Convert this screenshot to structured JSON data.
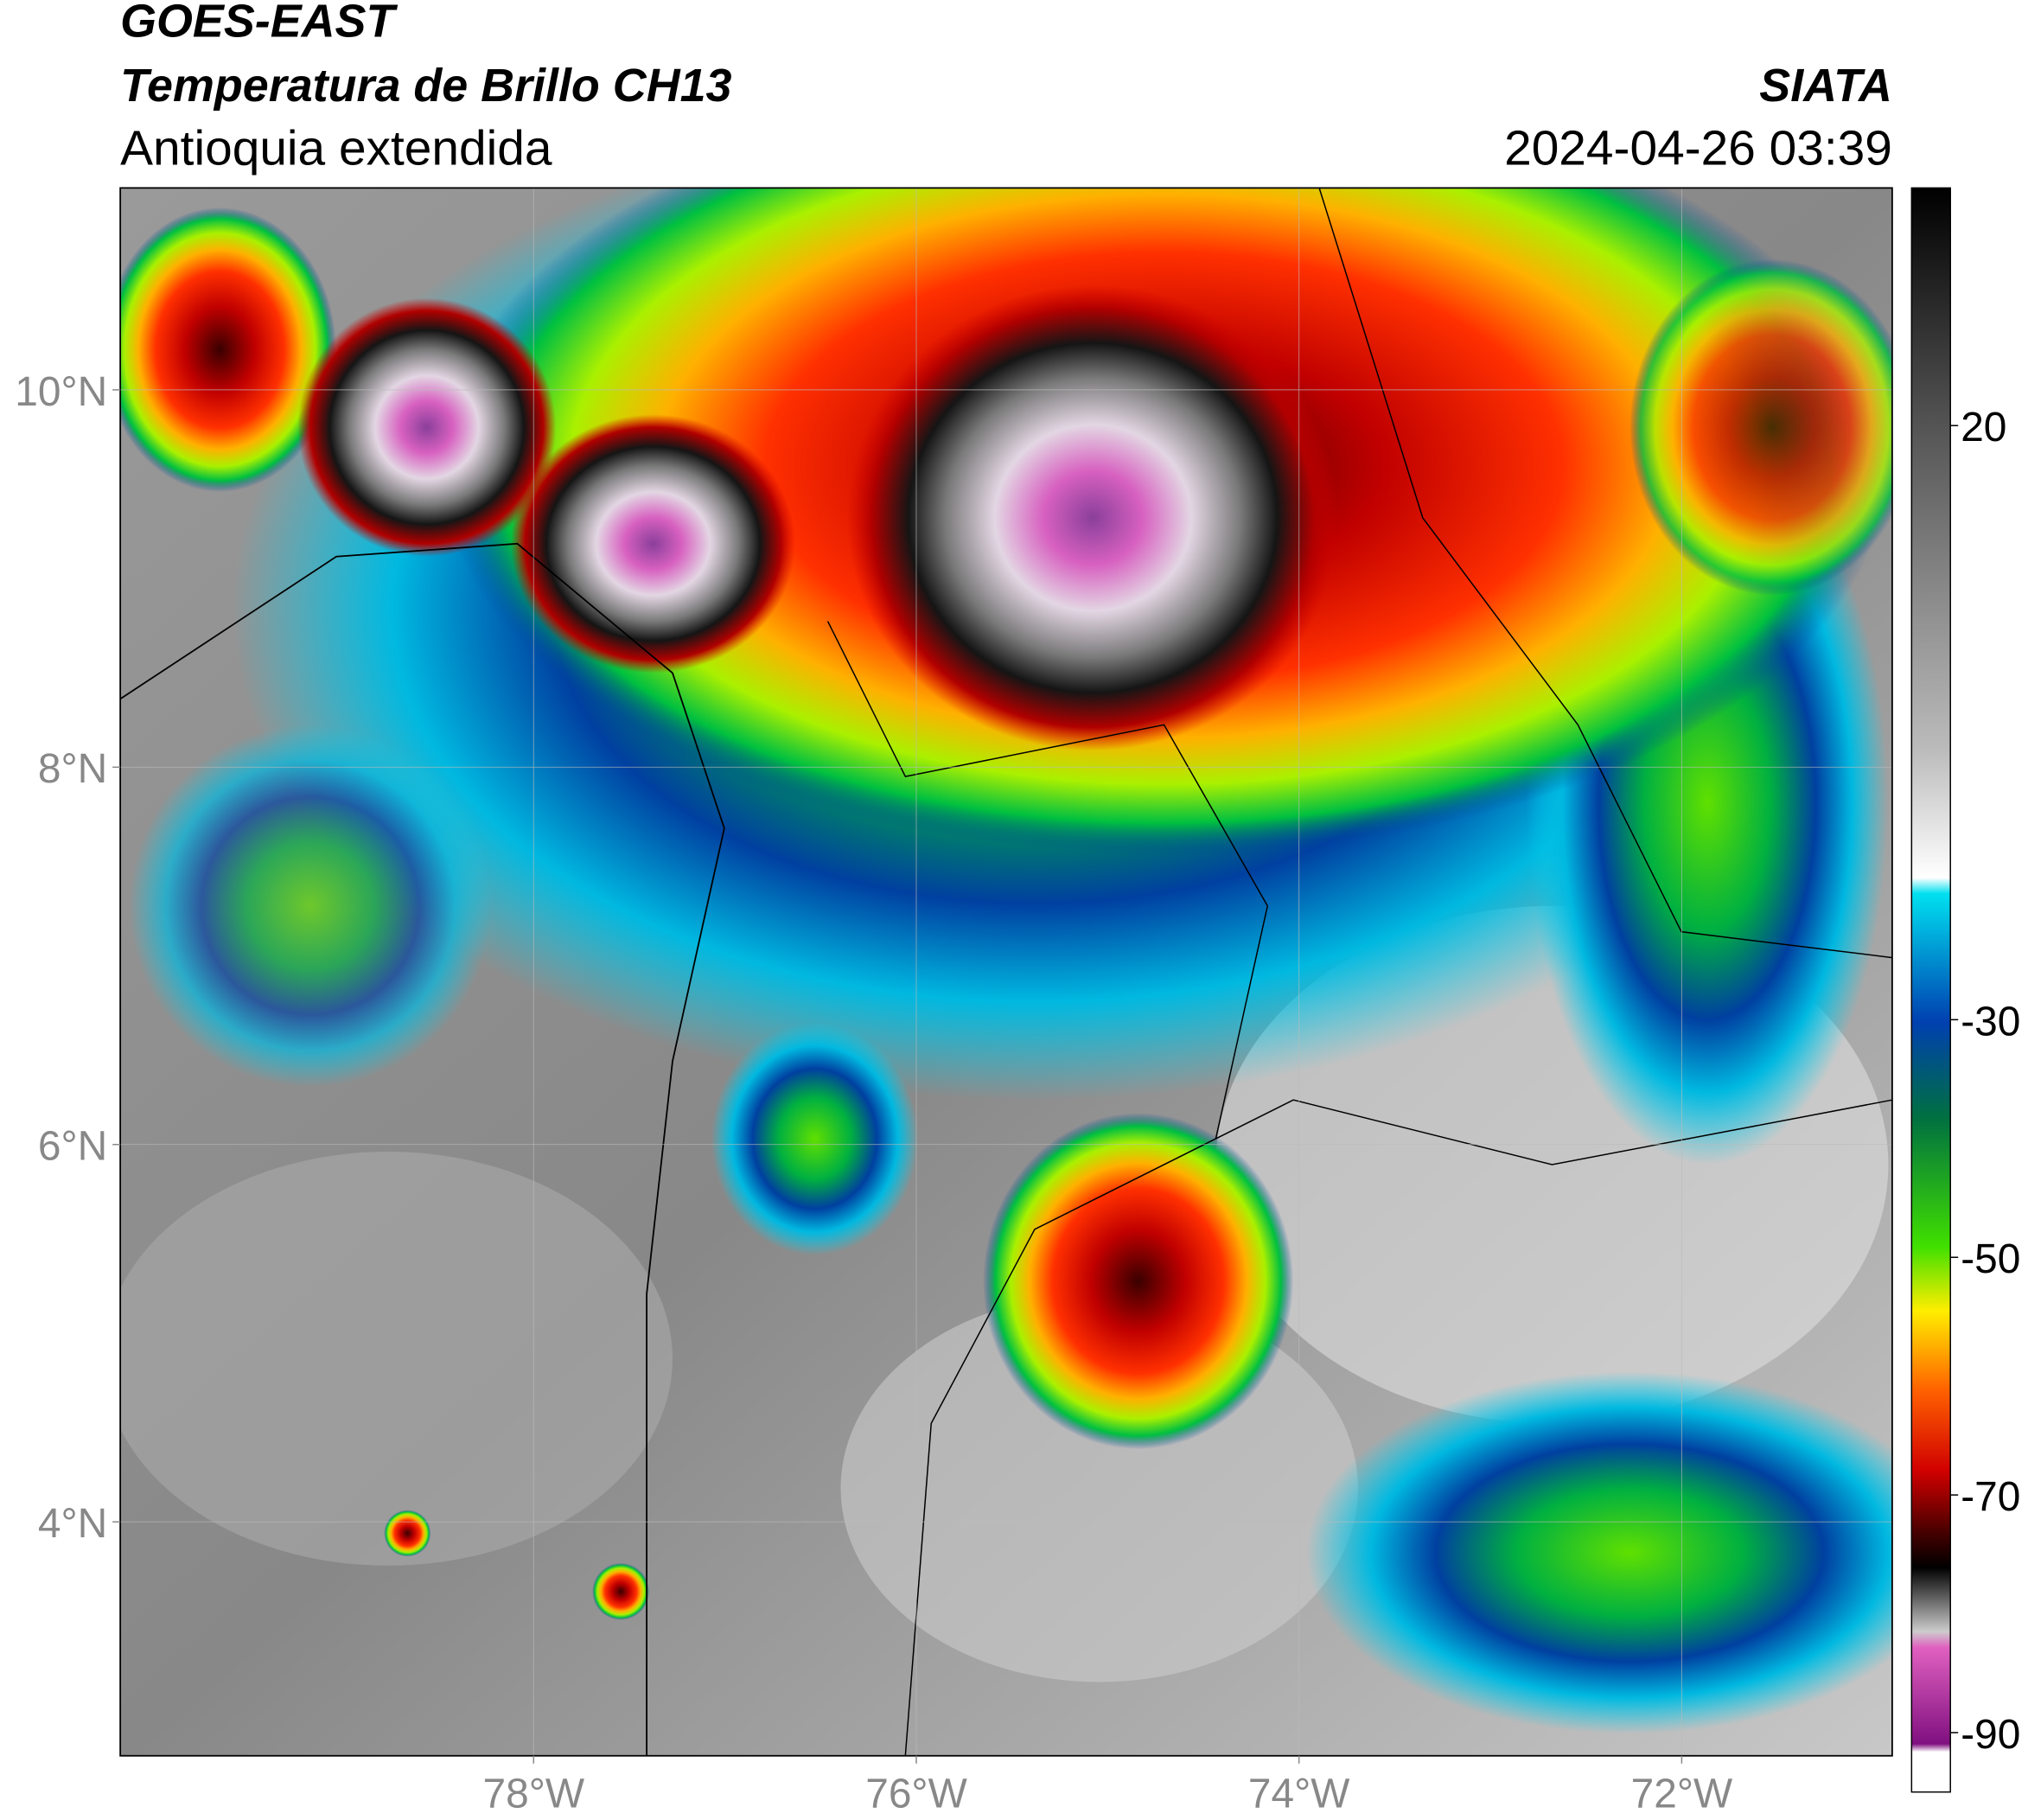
{
  "header": {
    "title": "GOES-EAST",
    "subtitle": "Temperatura de Brillo CH13",
    "region": "Antioquia extendida",
    "source": "SIATA",
    "datetime": "2024-04-26 03:39"
  },
  "map": {
    "xlim": [
      -80.16,
      -70.9
    ],
    "ylim": [
      2.76,
      11.07
    ],
    "xticks": [
      {
        "value": -78,
        "label": "78°W"
      },
      {
        "value": -76,
        "label": "76°W"
      },
      {
        "value": -74,
        "label": "74°W"
      },
      {
        "value": -72,
        "label": "72°W"
      }
    ],
    "yticks": [
      {
        "value": 10,
        "label": "10°N"
      },
      {
        "value": 8,
        "label": "8°N"
      },
      {
        "value": 6,
        "label": "6°N"
      },
      {
        "value": 4,
        "label": "4°N"
      }
    ],
    "grid": true
  },
  "colorbar": {
    "lim": [
      -95,
      40
    ],
    "ticks": [
      20,
      -30,
      -50,
      -70,
      -90
    ]
  }
}
